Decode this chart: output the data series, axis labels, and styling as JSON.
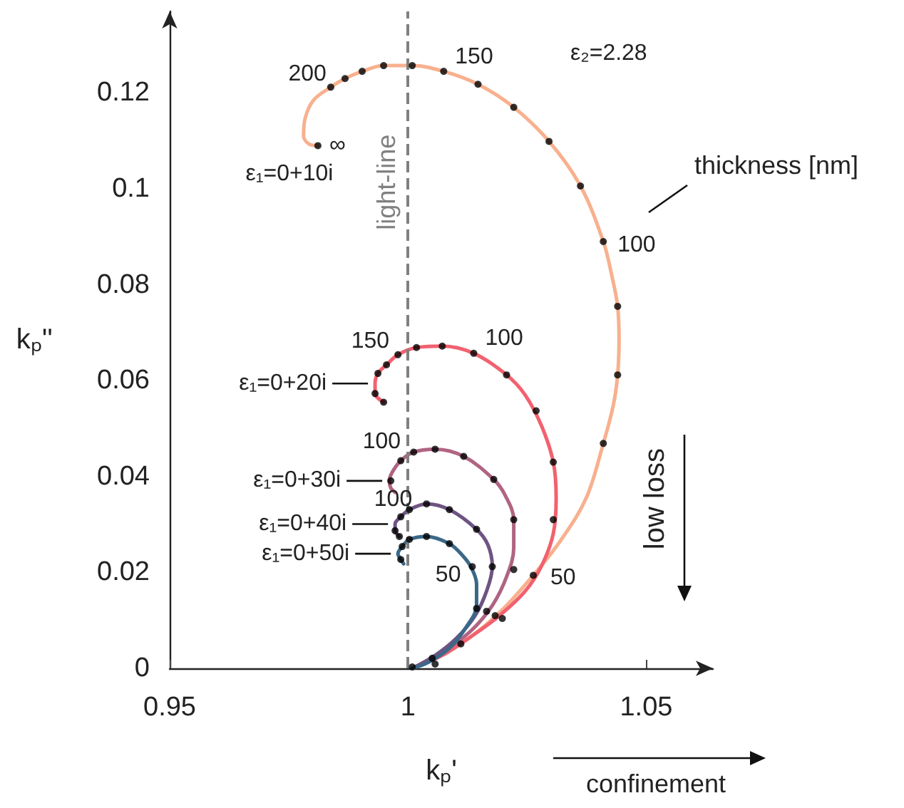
{
  "chart_data": {
    "type": "line",
    "xlabel": "kₚ'",
    "ylabel": "kₚ''",
    "xlim": [
      0.95,
      1.064
    ],
    "xticks": [
      0.95,
      1,
      1.05
    ],
    "ylim": [
      0,
      0.137
    ],
    "yticks": [
      0,
      0.02,
      0.04,
      0.06,
      0.08,
      0.1,
      0.12
    ],
    "series": [
      {
        "name": "ε₁=0+10i",
        "color": "#f8b08e",
        "x": [
          1.0009,
          1.0057,
          1.0132,
          1.0198,
          1.0263,
          1.032,
          1.0374,
          1.041,
          1.0431,
          1.044,
          1.0443,
          1.044,
          1.0428,
          1.041,
          1.0362,
          1.0296,
          1.0222,
          1.0147,
          1.0075,
          1.0009,
          0.9949,
          0.9904,
          0.9868,
          0.9838,
          0.9802,
          0.9784,
          0.9781,
          0.9793,
          0.9811
        ],
        "values": [
          0,
          0.0024,
          0.0066,
          0.0122,
          0.0194,
          0.0266,
          0.0355,
          0.0469,
          0.0549,
          0.0612,
          0.0684,
          0.0755,
          0.0818,
          0.089,
          0.1006,
          0.1099,
          0.117,
          0.1218,
          0.1245,
          0.1257,
          0.1257,
          0.1245,
          0.123,
          0.1212,
          0.1185,
          0.1146,
          0.111,
          0.1093,
          0.109
        ]
      },
      {
        "name": "ε₁=0+20i",
        "color": "#f2616f",
        "x": [
          1.0009,
          1.0072,
          1.0132,
          1.0192,
          1.0246,
          1.0281,
          1.0305,
          1.0311,
          1.0305,
          1.0281,
          1.0246,
          1.0207,
          1.0138,
          1.0072,
          1.0018,
          0.9979,
          0.9955,
          0.9937,
          0.9931,
          0.9931,
          0.9949
        ],
        "values": [
          0,
          0.0027,
          0.0066,
          0.011,
          0.0161,
          0.0215,
          0.0281,
          0.0355,
          0.043,
          0.0504,
          0.057,
          0.0612,
          0.0657,
          0.0672,
          0.0669,
          0.0654,
          0.0633,
          0.0615,
          0.0594,
          0.0573,
          0.0555
        ]
      },
      {
        "name": "ε₁=0+30i",
        "color": "#b06482",
        "x": [
          1.0009,
          1.0072,
          1.0132,
          1.0177,
          1.0207,
          1.0222,
          1.0222,
          1.0204,
          1.018,
          1.0117,
          1.0057,
          1.0012,
          0.9985,
          0.9967,
          0.9961,
          0.9964,
          0.9973
        ],
        "values": [
          0,
          0.0033,
          0.0078,
          0.0131,
          0.0191,
          0.0251,
          0.031,
          0.0361,
          0.0394,
          0.0442,
          0.0457,
          0.0451,
          0.0433,
          0.0409,
          0.0391,
          0.0376,
          0.0367
        ]
      },
      {
        "name": "ε₁=0+40i",
        "color": "#6e5482",
        "x": [
          1.0009,
          1.0057,
          1.0102,
          1.0141,
          1.0165,
          1.0177,
          1.0168,
          1.0144,
          1.0087,
          1.0039,
          1.0003,
          0.9985,
          0.9973,
          0.9973,
          0.9982
        ],
        "values": [
          0,
          0.0027,
          0.0063,
          0.011,
          0.0161,
          0.0212,
          0.0257,
          0.029,
          0.0331,
          0.0343,
          0.0331,
          0.0316,
          0.0301,
          0.0287,
          0.0275
        ]
      },
      {
        "name": "ε₁=0+50i",
        "color": "#3b6888",
        "x": [
          1.0009,
          1.0042,
          1.0087,
          1.0123,
          1.0144,
          1.0144,
          1.0132,
          1.0114,
          1.0087,
          1.0039,
          1.0003,
          0.9988,
          0.9979,
          0.9985,
          0.9991
        ],
        "values": [
          0,
          0.0012,
          0.0042,
          0.0087,
          0.0131,
          0.0176,
          0.0212,
          0.0236,
          0.026,
          0.0275,
          0.0269,
          0.0254,
          0.0239,
          0.0227,
          0.0218
        ]
      },
      {
        "type": "scatter",
        "color": "#000000",
        "x": [
          1.0263,
          1.041,
          1.044,
          1.044,
          1.041,
          1.0362,
          1.0296,
          1.0222,
          1.0147,
          1.0075,
          1.0009,
          0.9949,
          0.9904,
          0.9868,
          0.9838,
          0.9811,
          1.0305,
          1.0305,
          1.0269,
          1.0207,
          1.0138,
          1.0072,
          1.0018,
          0.9979,
          0.9955,
          0.9937,
          0.9931,
          0.9949,
          1.0198,
          1.0222,
          1.018,
          1.0117,
          1.0057,
          1.0012,
          0.9985,
          0.9964,
          0.9973,
          1.0222,
          1.0183,
          1.0177,
          1.0144,
          1.0087,
          1.0039,
          1.0003,
          0.9985,
          0.9973,
          0.9982,
          1.0165,
          1.0135,
          1.0144,
          1.0087,
          1.0039,
          1.0003,
          0.9988,
          0.9985,
          1.0111,
          1.0009,
          1.0051,
          1.0057
        ],
        "values": [
          0.0194,
          0.0469,
          0.0612,
          0.0755,
          0.089,
          0.1006,
          0.1099,
          0.117,
          0.1218,
          0.1245,
          0.1257,
          0.1257,
          0.1245,
          0.123,
          0.1212,
          0.109,
          0.031,
          0.043,
          0.0537,
          0.0612,
          0.0657,
          0.0672,
          0.0669,
          0.0654,
          0.0633,
          0.0615,
          0.0573,
          0.0555,
          0.0104,
          0.031,
          0.0394,
          0.0442,
          0.0457,
          0.0451,
          0.0433,
          0.0391,
          null,
          0.0206,
          0.011,
          0.0212,
          0.029,
          0.0331,
          0.0343,
          0.0331,
          0.0316,
          0.0287,
          0.0275,
          0.0119,
          0.0212,
          0.0125,
          0.026,
          0.0275,
          0.0269,
          0.0254,
          0.0227,
          0.0051,
          0.0003,
          0.0021,
          0.0009
        ]
      }
    ],
    "ref_lines": [
      {
        "axis": "x",
        "value": 1,
        "label": "light-line",
        "color": "#808080",
        "line_style": "dashed"
      }
    ],
    "annotations": [
      {
        "text": "∞",
        "x": 0.9811,
        "y": 0.109
      },
      {
        "text": "200",
        "x": 0.9838,
        "y": 0.1212
      },
      {
        "text": "150",
        "x": 1.0075,
        "y": 0.1245
      },
      {
        "text": "100",
        "x": 1.041,
        "y": 0.089
      },
      {
        "text": "50",
        "x": 1.0263,
        "y": 0.0194
      },
      {
        "text": "150",
        "x": 0.9979,
        "y": 0.0654
      },
      {
        "text": "100",
        "x": 1.0138,
        "y": 0.0657
      },
      {
        "text": "100",
        "x": 0.9985,
        "y": 0.0433
      },
      {
        "text": "100",
        "x": 1.0003,
        "y": 0.0331
      },
      {
        "text": "50",
        "x": 1.0135,
        "y": 0.0212
      },
      "thickness [nm]",
      "ε₂=2.28",
      "low loss",
      "confinement"
    ]
  }
}
